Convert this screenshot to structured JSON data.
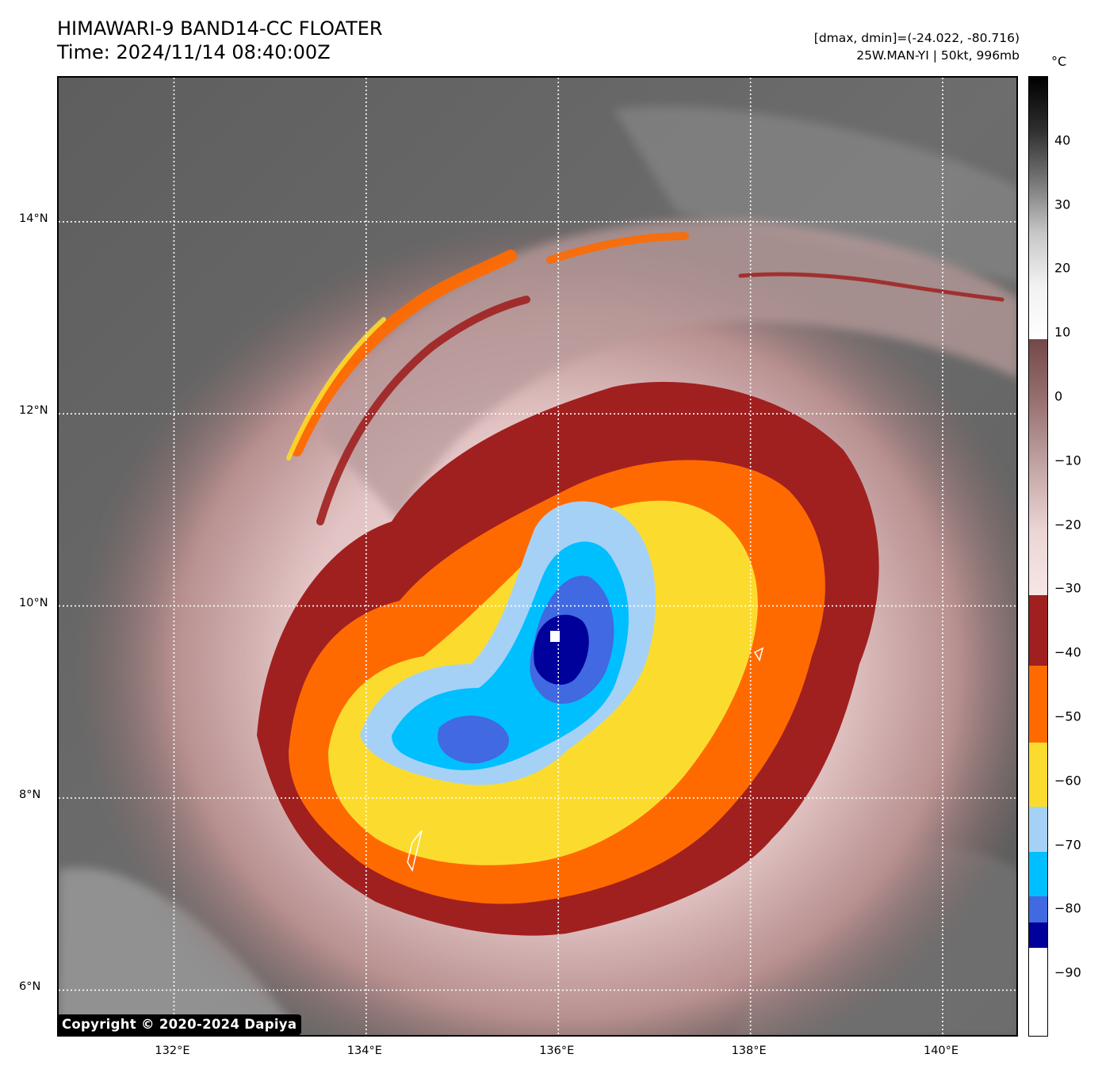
{
  "header": {
    "title_line1": "HIMAWARI-9 BAND14-CC FLOATER",
    "title_line2": "Time: 2024/11/14 08:40:00Z",
    "meta_line1": "[dmax, dmin]=(-24.022, -80.716)",
    "meta_line2": "25W.MAN-YI | 50kt, 996mb"
  },
  "map": {
    "latitude_labels": [
      "14°N",
      "12°N",
      "10°N",
      "8°N",
      "6°N"
    ],
    "longitude_labels": [
      "132°E",
      "134°E",
      "136°E",
      "138°E",
      "140°E"
    ],
    "lat_range": [
      5.5,
      15.5
    ],
    "lon_range": [
      130.8,
      140.8
    ],
    "gridlines": true,
    "storm_center": {
      "lat": 9.7,
      "lon": 136.0
    }
  },
  "colorbar": {
    "unit": "°C",
    "tick_labels": [
      "40",
      "30",
      "20",
      "10",
      "0",
      "−10",
      "−20",
      "−30",
      "−40",
      "−50",
      "−60",
      "−70",
      "−80",
      "−90"
    ],
    "range": [
      -100,
      50
    ],
    "segments": [
      {
        "from": 50,
        "to": 9,
        "type": "gradient",
        "colors": [
          "#000000",
          "#2e2e2e",
          "#777777",
          "#c8c8c8",
          "#f2f2f2",
          "#ffffff"
        ]
      },
      {
        "from": 9,
        "to": -31,
        "type": "gradient",
        "colors": [
          "#744848",
          "#9a7272",
          "#c3a5a5",
          "#ecd5d5",
          "#f7e6e6"
        ]
      },
      {
        "from": -31,
        "to": -42,
        "type": "solid",
        "color": "#a02020"
      },
      {
        "from": -42,
        "to": -54,
        "type": "solid",
        "color": "#ff6a00"
      },
      {
        "from": -54,
        "to": -64,
        "type": "solid",
        "color": "#fbdc2e"
      },
      {
        "from": -64,
        "to": -71,
        "type": "solid",
        "color": "#a6d1f7"
      },
      {
        "from": -71,
        "to": -78,
        "type": "solid",
        "color": "#00bfff"
      },
      {
        "from": -78,
        "to": -82,
        "type": "solid",
        "color": "#4169e1"
      },
      {
        "from": -82,
        "to": -86,
        "type": "solid",
        "color": "#00009a"
      },
      {
        "from": -86,
        "to": -100,
        "type": "solid",
        "color": "#ffffff"
      }
    ]
  },
  "footer": {
    "copyright": "Copyright © 2020-2024 Dapiya"
  }
}
